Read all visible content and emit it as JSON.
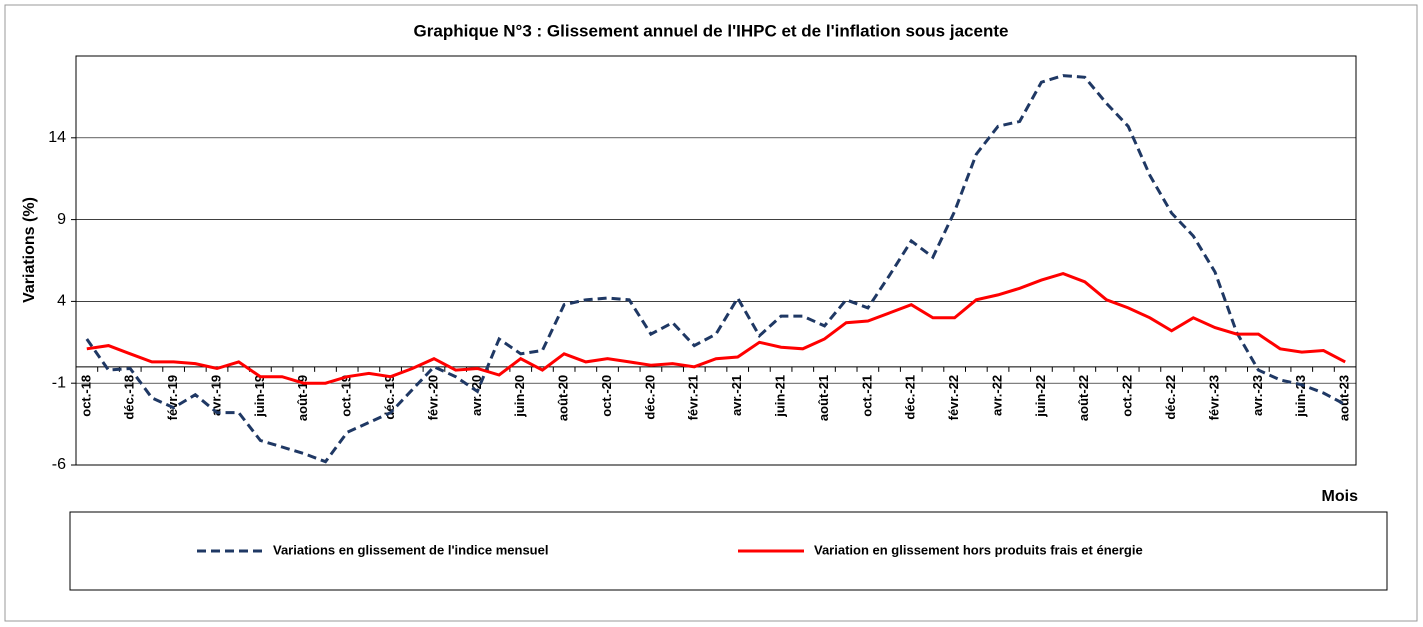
{
  "chart_data": {
    "type": "line",
    "title": "Graphique N°3 : Glissement annuel de l'IHPC et de l'inflation sous jacente",
    "y_label": "Variations (%)",
    "x_label": "Mois",
    "categories": [
      "oct.-18",
      null,
      "déc.-18",
      null,
      "févr.-19",
      null,
      "avr.-19",
      null,
      "juin-19",
      null,
      "août-19",
      null,
      "oct.-19",
      null,
      "déc.-19",
      null,
      "févr.-20",
      null,
      "avr.-20",
      null,
      "juin-20",
      null,
      "août-20",
      null,
      "oct.-20",
      null,
      "déc.-20",
      null,
      "févr.-21",
      null,
      "avr.-21",
      null,
      "juin-21",
      null,
      "août-21",
      null,
      "oct.-21",
      null,
      "déc.-21",
      null,
      "févr.-22",
      null,
      "avr.-22",
      null,
      "juin-22",
      null,
      "août-22",
      null,
      "oct.-22",
      null,
      "déc.-22",
      null,
      "févr.-23",
      null,
      "avr.-23",
      null,
      "juin-23",
      null,
      "août-23"
    ],
    "series": [
      {
        "name": "Variations en glissement de l'indice mensuel",
        "color": "#1f3864",
        "dash": true,
        "values": [
          1.7,
          -0.2,
          -0.1,
          -1.9,
          -2.5,
          -1.7,
          -2.8,
          -2.8,
          -4.5,
          -4.9,
          -5.3,
          -5.8,
          -4.0,
          -3.4,
          -2.8,
          -1.4,
          0.0,
          -0.6,
          -1.5,
          1.7,
          0.8,
          1.0,
          3.8,
          4.1,
          4.2,
          4.1,
          2.0,
          2.7,
          1.3,
          2.0,
          4.2,
          1.9,
          3.1,
          3.1,
          2.5,
          4.1,
          3.6,
          5.6,
          7.7,
          6.7,
          9.5,
          13.0,
          14.7,
          15.0,
          17.4,
          17.8,
          17.7,
          16.1,
          14.7,
          11.7,
          9.4,
          8.0,
          5.8,
          2.1,
          -0.2,
          -0.8,
          -1.1,
          -1.6,
          -2.3
        ]
      },
      {
        "name": "Variation en glissement hors produits frais et énergie",
        "color": "#ff0000",
        "dash": false,
        "values": [
          1.1,
          1.3,
          0.8,
          0.3,
          0.3,
          0.2,
          -0.1,
          0.3,
          -0.6,
          -0.6,
          -1.0,
          -1.0,
          -0.6,
          -0.4,
          -0.6,
          -0.1,
          0.5,
          -0.2,
          -0.1,
          -0.5,
          0.5,
          -0.2,
          0.8,
          0.3,
          0.5,
          0.3,
          0.1,
          0.2,
          0.0,
          0.5,
          0.6,
          1.5,
          1.2,
          1.1,
          1.7,
          2.7,
          2.8,
          3.3,
          3.8,
          3.0,
          3.0,
          4.1,
          4.4,
          4.8,
          5.3,
          5.7,
          5.2,
          4.1,
          3.6,
          3.0,
          2.2,
          3.0,
          2.4,
          2.0,
          2.0,
          1.1,
          0.9,
          1.0,
          0.3
        ]
      }
    ],
    "ylim": [
      -6,
      19
    ],
    "yticks": [
      -6,
      -1,
      4,
      9,
      14
    ],
    "grid": true,
    "legend": "bottom"
  }
}
